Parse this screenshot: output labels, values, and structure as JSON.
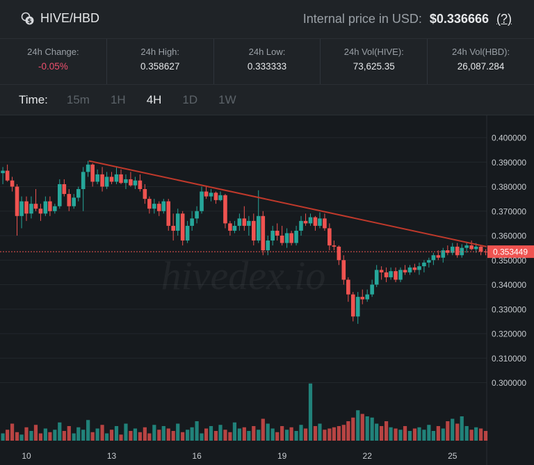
{
  "header": {
    "pair": "HIVE/HBD",
    "internal_label": "Internal price in USD:",
    "internal_value": "$0.336666",
    "help": "(?)"
  },
  "stats": [
    {
      "label": "24h Change:",
      "value": "-0.05%",
      "negative": true
    },
    {
      "label": "24h High:",
      "value": "0.358627",
      "negative": false
    },
    {
      "label": "24h Low:",
      "value": "0.333333",
      "negative": false
    },
    {
      "label": "24h Vol(HIVE):",
      "value": "73,625.35",
      "negative": false
    },
    {
      "label": "24h Vol(HBD):",
      "value": "26,087.284",
      "negative": false
    }
  ],
  "timeframe": {
    "label": "Time:",
    "options": [
      "15m",
      "1H",
      "4H",
      "1D",
      "1W"
    ],
    "active": "4H"
  },
  "colors": {
    "up": "#26a69a",
    "down": "#ef5350",
    "trendline": "#c0392b",
    "background": "#161a1e"
  },
  "chart_data": {
    "type": "candlestick",
    "interval": "4H",
    "y_ticks": [
      "0.400000",
      "0.390000",
      "0.380000",
      "0.370000",
      "0.360000",
      "0.350000",
      "0.340000",
      "0.330000",
      "0.320000",
      "0.310000",
      "0.300000"
    ],
    "ylim": [
      0.295,
      0.405
    ],
    "x_ticks": [
      "10",
      "13",
      "16",
      "19",
      "22",
      "25"
    ],
    "last_price": "0.353449",
    "watermark": "hivedex.io",
    "trendline": {
      "from": {
        "day": 12.2,
        "price": 0.3905
      },
      "to": {
        "day": 26.2,
        "price": 0.3555
      }
    },
    "candles": [
      {
        "d": 9.0,
        "o": 0.387,
        "h": 0.389,
        "l": 0.38,
        "c": 0.3855
      },
      {
        "d": 9.17,
        "o": 0.3855,
        "h": 0.388,
        "l": 0.381,
        "c": 0.3865
      },
      {
        "d": 9.33,
        "o": 0.3865,
        "h": 0.389,
        "l": 0.382,
        "c": 0.3825
      },
      {
        "d": 9.5,
        "o": 0.3825,
        "h": 0.384,
        "l": 0.378,
        "c": 0.38
      },
      {
        "d": 9.67,
        "o": 0.38,
        "h": 0.381,
        "l": 0.36,
        "c": 0.368
      },
      {
        "d": 9.83,
        "o": 0.368,
        "h": 0.376,
        "l": 0.363,
        "c": 0.374
      },
      {
        "d": 10.0,
        "o": 0.374,
        "h": 0.376,
        "l": 0.366,
        "c": 0.369
      },
      {
        "d": 10.17,
        "o": 0.369,
        "h": 0.376,
        "l": 0.367,
        "c": 0.373
      },
      {
        "d": 10.33,
        "o": 0.373,
        "h": 0.379,
        "l": 0.37,
        "c": 0.371
      },
      {
        "d": 10.5,
        "o": 0.371,
        "h": 0.373,
        "l": 0.366,
        "c": 0.369
      },
      {
        "d": 10.67,
        "o": 0.369,
        "h": 0.376,
        "l": 0.368,
        "c": 0.374
      },
      {
        "d": 10.83,
        "o": 0.374,
        "h": 0.376,
        "l": 0.368,
        "c": 0.37
      },
      {
        "d": 11.0,
        "o": 0.37,
        "h": 0.373,
        "l": 0.369,
        "c": 0.372
      },
      {
        "d": 11.17,
        "o": 0.372,
        "h": 0.383,
        "l": 0.371,
        "c": 0.381
      },
      {
        "d": 11.33,
        "o": 0.381,
        "h": 0.383,
        "l": 0.376,
        "c": 0.377
      },
      {
        "d": 11.5,
        "o": 0.377,
        "h": 0.379,
        "l": 0.37,
        "c": 0.372
      },
      {
        "d": 11.67,
        "o": 0.372,
        "h": 0.377,
        "l": 0.371,
        "c": 0.3755
      },
      {
        "d": 11.83,
        "o": 0.3755,
        "h": 0.38,
        "l": 0.374,
        "c": 0.379
      },
      {
        "d": 12.0,
        "o": 0.379,
        "h": 0.388,
        "l": 0.37,
        "c": 0.386
      },
      {
        "d": 12.17,
        "o": 0.386,
        "h": 0.3905,
        "l": 0.384,
        "c": 0.389
      },
      {
        "d": 12.33,
        "o": 0.389,
        "h": 0.3895,
        "l": 0.38,
        "c": 0.382
      },
      {
        "d": 12.5,
        "o": 0.382,
        "h": 0.387,
        "l": 0.381,
        "c": 0.385
      },
      {
        "d": 12.67,
        "o": 0.385,
        "h": 0.388,
        "l": 0.378,
        "c": 0.38
      },
      {
        "d": 12.83,
        "o": 0.38,
        "h": 0.386,
        "l": 0.379,
        "c": 0.384
      },
      {
        "d": 13.0,
        "o": 0.384,
        "h": 0.386,
        "l": 0.381,
        "c": 0.382
      },
      {
        "d": 13.17,
        "o": 0.382,
        "h": 0.388,
        "l": 0.381,
        "c": 0.385
      },
      {
        "d": 13.33,
        "o": 0.385,
        "h": 0.387,
        "l": 0.381,
        "c": 0.3815
      },
      {
        "d": 13.5,
        "o": 0.3815,
        "h": 0.385,
        "l": 0.379,
        "c": 0.383
      },
      {
        "d": 13.67,
        "o": 0.383,
        "h": 0.386,
        "l": 0.38,
        "c": 0.3805
      },
      {
        "d": 13.83,
        "o": 0.3805,
        "h": 0.384,
        "l": 0.379,
        "c": 0.3825
      },
      {
        "d": 14.0,
        "o": 0.3825,
        "h": 0.385,
        "l": 0.378,
        "c": 0.379
      },
      {
        "d": 14.17,
        "o": 0.379,
        "h": 0.381,
        "l": 0.373,
        "c": 0.375
      },
      {
        "d": 14.33,
        "o": 0.375,
        "h": 0.376,
        "l": 0.369,
        "c": 0.371
      },
      {
        "d": 14.5,
        "o": 0.371,
        "h": 0.375,
        "l": 0.369,
        "c": 0.373
      },
      {
        "d": 14.67,
        "o": 0.373,
        "h": 0.374,
        "l": 0.368,
        "c": 0.37
      },
      {
        "d": 14.83,
        "o": 0.37,
        "h": 0.375,
        "l": 0.369,
        "c": 0.374
      },
      {
        "d": 15.0,
        "o": 0.374,
        "h": 0.375,
        "l": 0.362,
        "c": 0.364
      },
      {
        "d": 15.17,
        "o": 0.364,
        "h": 0.369,
        "l": 0.358,
        "c": 0.362
      },
      {
        "d": 15.33,
        "o": 0.362,
        "h": 0.371,
        "l": 0.36,
        "c": 0.369
      },
      {
        "d": 15.5,
        "o": 0.369,
        "h": 0.37,
        "l": 0.356,
        "c": 0.358
      },
      {
        "d": 15.67,
        "o": 0.358,
        "h": 0.366,
        "l": 0.357,
        "c": 0.364
      },
      {
        "d": 15.83,
        "o": 0.364,
        "h": 0.37,
        "l": 0.362,
        "c": 0.367
      },
      {
        "d": 16.0,
        "o": 0.367,
        "h": 0.372,
        "l": 0.365,
        "c": 0.37
      },
      {
        "d": 16.17,
        "o": 0.37,
        "h": 0.38,
        "l": 0.369,
        "c": 0.378
      },
      {
        "d": 16.33,
        "o": 0.378,
        "h": 0.38,
        "l": 0.375,
        "c": 0.376
      },
      {
        "d": 16.5,
        "o": 0.376,
        "h": 0.379,
        "l": 0.374,
        "c": 0.3775
      },
      {
        "d": 16.67,
        "o": 0.3775,
        "h": 0.378,
        "l": 0.373,
        "c": 0.3745
      },
      {
        "d": 16.83,
        "o": 0.3745,
        "h": 0.378,
        "l": 0.374,
        "c": 0.3765
      },
      {
        "d": 17.0,
        "o": 0.3765,
        "h": 0.377,
        "l": 0.363,
        "c": 0.365
      },
      {
        "d": 17.17,
        "o": 0.365,
        "h": 0.366,
        "l": 0.36,
        "c": 0.362
      },
      {
        "d": 17.33,
        "o": 0.362,
        "h": 0.366,
        "l": 0.361,
        "c": 0.364
      },
      {
        "d": 17.5,
        "o": 0.364,
        "h": 0.369,
        "l": 0.362,
        "c": 0.367
      },
      {
        "d": 17.67,
        "o": 0.367,
        "h": 0.372,
        "l": 0.362,
        "c": 0.364
      },
      {
        "d": 17.83,
        "o": 0.364,
        "h": 0.368,
        "l": 0.36,
        "c": 0.366
      },
      {
        "d": 18.0,
        "o": 0.366,
        "h": 0.369,
        "l": 0.356,
        "c": 0.358
      },
      {
        "d": 18.17,
        "o": 0.358,
        "h": 0.3785,
        "l": 0.357,
        "c": 0.368
      },
      {
        "d": 18.33,
        "o": 0.368,
        "h": 0.37,
        "l": 0.352,
        "c": 0.354
      },
      {
        "d": 18.5,
        "o": 0.354,
        "h": 0.36,
        "l": 0.352,
        "c": 0.358
      },
      {
        "d": 18.67,
        "o": 0.358,
        "h": 0.364,
        "l": 0.356,
        "c": 0.362
      },
      {
        "d": 18.83,
        "o": 0.362,
        "h": 0.365,
        "l": 0.358,
        "c": 0.36
      },
      {
        "d": 19.0,
        "o": 0.36,
        "h": 0.364,
        "l": 0.356,
        "c": 0.357
      },
      {
        "d": 19.17,
        "o": 0.357,
        "h": 0.363,
        "l": 0.355,
        "c": 0.361
      },
      {
        "d": 19.33,
        "o": 0.361,
        "h": 0.362,
        "l": 0.356,
        "c": 0.357
      },
      {
        "d": 19.5,
        "o": 0.357,
        "h": 0.364,
        "l": 0.356,
        "c": 0.362
      },
      {
        "d": 19.67,
        "o": 0.362,
        "h": 0.368,
        "l": 0.36,
        "c": 0.366
      },
      {
        "d": 19.83,
        "o": 0.366,
        "h": 0.369,
        "l": 0.364,
        "c": 0.365
      },
      {
        "d": 20.0,
        "o": 0.365,
        "h": 0.369,
        "l": 0.364,
        "c": 0.3675
      },
      {
        "d": 20.17,
        "o": 0.3675,
        "h": 0.368,
        "l": 0.362,
        "c": 0.364
      },
      {
        "d": 20.33,
        "o": 0.364,
        "h": 0.3695,
        "l": 0.363,
        "c": 0.367
      },
      {
        "d": 20.5,
        "o": 0.367,
        "h": 0.369,
        "l": 0.362,
        "c": 0.363
      },
      {
        "d": 20.67,
        "o": 0.363,
        "h": 0.365,
        "l": 0.354,
        "c": 0.356
      },
      {
        "d": 20.83,
        "o": 0.356,
        "h": 0.358,
        "l": 0.354,
        "c": 0.3555
      },
      {
        "d": 21.0,
        "o": 0.3555,
        "h": 0.356,
        "l": 0.348,
        "c": 0.35
      },
      {
        "d": 21.17,
        "o": 0.35,
        "h": 0.352,
        "l": 0.34,
        "c": 0.342
      },
      {
        "d": 21.33,
        "o": 0.342,
        "h": 0.343,
        "l": 0.333,
        "c": 0.336
      },
      {
        "d": 21.5,
        "o": 0.336,
        "h": 0.337,
        "l": 0.325,
        "c": 0.327
      },
      {
        "d": 21.67,
        "o": 0.327,
        "h": 0.337,
        "l": 0.324,
        "c": 0.335
      },
      {
        "d": 21.83,
        "o": 0.335,
        "h": 0.338,
        "l": 0.332,
        "c": 0.334
      },
      {
        "d": 22.0,
        "o": 0.334,
        "h": 0.338,
        "l": 0.333,
        "c": 0.336
      },
      {
        "d": 22.17,
        "o": 0.336,
        "h": 0.342,
        "l": 0.335,
        "c": 0.34
      },
      {
        "d": 22.33,
        "o": 0.34,
        "h": 0.348,
        "l": 0.339,
        "c": 0.346
      },
      {
        "d": 22.5,
        "o": 0.346,
        "h": 0.3475,
        "l": 0.342,
        "c": 0.345
      },
      {
        "d": 22.67,
        "o": 0.345,
        "h": 0.347,
        "l": 0.341,
        "c": 0.343
      },
      {
        "d": 22.83,
        "o": 0.343,
        "h": 0.347,
        "l": 0.342,
        "c": 0.3455
      },
      {
        "d": 23.0,
        "o": 0.3455,
        "h": 0.347,
        "l": 0.341,
        "c": 0.342
      },
      {
        "d": 23.17,
        "o": 0.342,
        "h": 0.347,
        "l": 0.341,
        "c": 0.346
      },
      {
        "d": 23.33,
        "o": 0.346,
        "h": 0.348,
        "l": 0.344,
        "c": 0.345
      },
      {
        "d": 23.5,
        "o": 0.345,
        "h": 0.348,
        "l": 0.344,
        "c": 0.347
      },
      {
        "d": 23.67,
        "o": 0.347,
        "h": 0.3485,
        "l": 0.345,
        "c": 0.346
      },
      {
        "d": 23.83,
        "o": 0.346,
        "h": 0.349,
        "l": 0.344,
        "c": 0.3475
      },
      {
        "d": 24.0,
        "o": 0.3475,
        "h": 0.35,
        "l": 0.345,
        "c": 0.349
      },
      {
        "d": 24.17,
        "o": 0.349,
        "h": 0.351,
        "l": 0.347,
        "c": 0.35
      },
      {
        "d": 24.33,
        "o": 0.35,
        "h": 0.353,
        "l": 0.348,
        "c": 0.352
      },
      {
        "d": 24.5,
        "o": 0.352,
        "h": 0.354,
        "l": 0.35,
        "c": 0.351
      },
      {
        "d": 24.67,
        "o": 0.351,
        "h": 0.355,
        "l": 0.349,
        "c": 0.354
      },
      {
        "d": 24.83,
        "o": 0.354,
        "h": 0.356,
        "l": 0.352,
        "c": 0.353
      },
      {
        "d": 25.0,
        "o": 0.353,
        "h": 0.357,
        "l": 0.352,
        "c": 0.3555
      },
      {
        "d": 25.17,
        "o": 0.3555,
        "h": 0.357,
        "l": 0.351,
        "c": 0.352
      },
      {
        "d": 25.33,
        "o": 0.352,
        "h": 0.3565,
        "l": 0.351,
        "c": 0.355
      },
      {
        "d": 25.5,
        "o": 0.355,
        "h": 0.3575,
        "l": 0.353,
        "c": 0.356
      },
      {
        "d": 25.67,
        "o": 0.356,
        "h": 0.358,
        "l": 0.354,
        "c": 0.3545
      },
      {
        "d": 25.83,
        "o": 0.3545,
        "h": 0.357,
        "l": 0.353,
        "c": 0.3555
      },
      {
        "d": 26.0,
        "o": 0.3555,
        "h": 0.356,
        "l": 0.352,
        "c": 0.3535
      },
      {
        "d": 26.17,
        "o": 0.3535,
        "h": 0.3545,
        "l": 0.352,
        "c": 0.3534
      }
    ],
    "volume": [
      12,
      6,
      9,
      14,
      7,
      5,
      11,
      8,
      13,
      6,
      10,
      7,
      9,
      15,
      8,
      12,
      6,
      11,
      9,
      17,
      7,
      10,
      13,
      6,
      9,
      12,
      5,
      14,
      8,
      10,
      7,
      11,
      6,
      13,
      9,
      12,
      10,
      8,
      14,
      7,
      9,
      11,
      16,
      6,
      10,
      12,
      8,
      13,
      9,
      7,
      15,
      10,
      11,
      8,
      12,
      9,
      18,
      14,
      10,
      7,
      12,
      9,
      11,
      8,
      13,
      10,
      47,
      12,
      14,
      9,
      10,
      11,
      12,
      13,
      16,
      19,
      25,
      22,
      20,
      19,
      14,
      12,
      16,
      11,
      10,
      9,
      12,
      8,
      10,
      11,
      9,
      13,
      8,
      12,
      10,
      16,
      18,
      14,
      20,
      12,
      9,
      11,
      10,
      8
    ]
  }
}
